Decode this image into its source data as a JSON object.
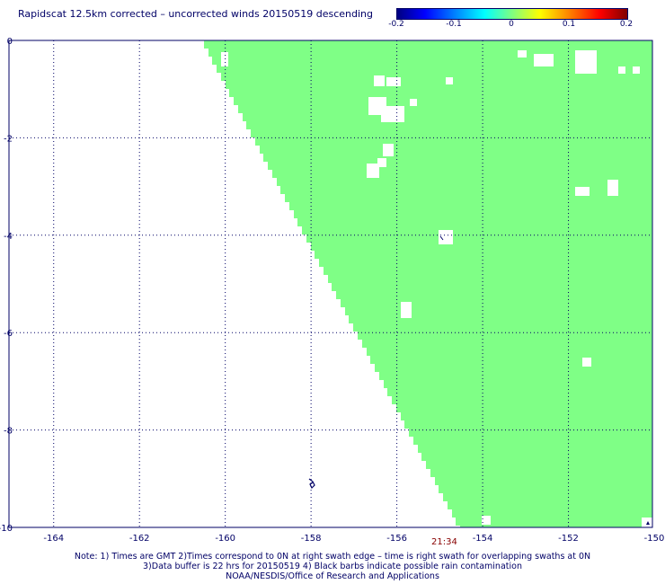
{
  "title": "Rapidscat 12.5km corrected – uncorrected winds 20150519 descending",
  "colorbar": {
    "labels": [
      "-0.2",
      "-0.1",
      "0",
      "0.1",
      "0.2"
    ],
    "colors": [
      "#000080",
      "#0000ff",
      "#00ffff",
      "#80ff80",
      "#ffff00",
      "#ff8000",
      "#ff0000",
      "#800000"
    ]
  },
  "map": {
    "x_ticks": [
      "-164",
      "-162",
      "-160",
      "-158",
      "-156",
      "-154",
      "-152",
      "-150"
    ],
    "y_ticks": [
      "0",
      "-2",
      "-4",
      "-6",
      "-8",
      "-10"
    ],
    "lon_range": [
      -165,
      -150
    ],
    "lat_range": [
      -10,
      0
    ],
    "swath_color": "#7fff86",
    "grid_style": "dotted",
    "swath_edge_lon_at_lat": [
      [
        -160.5,
        0
      ],
      [
        -154.5,
        -10
      ]
    ],
    "timestamp": "21:34"
  },
  "notes": [
    "Note: 1) Times are GMT 2)Times correspond to 0N at right swath edge – time is right swath for overlapping swaths at 0N",
    "3)Data buffer is 22 hrs for 20150519 4) Black barbs indicate possible rain contamination",
    "NOAA/NESDIS/Office of Research and Applications"
  ]
}
